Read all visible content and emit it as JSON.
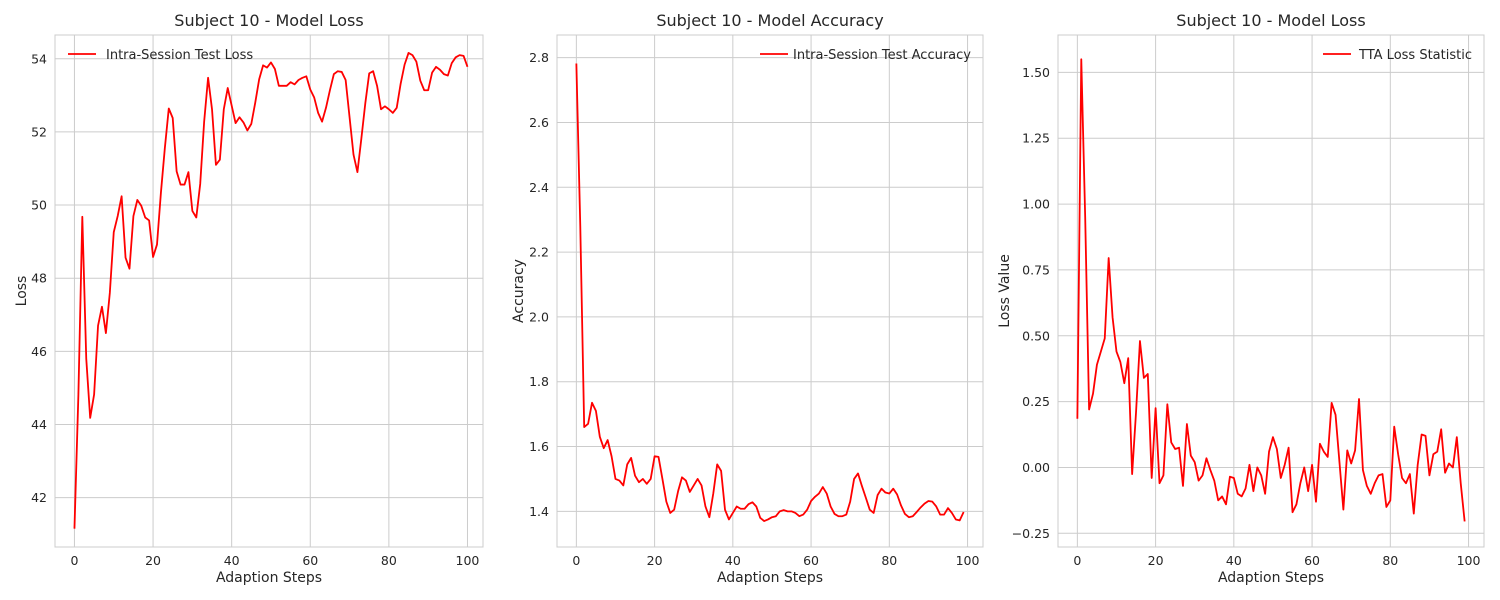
{
  "colors": {
    "line": "#ff0000",
    "grid": "#cccccc",
    "frame": "#cccccc",
    "background": "#ffffff",
    "text": "#262626"
  },
  "chart_data": [
    {
      "type": "line",
      "title": "Subject 10 - Model Loss",
      "xlabel": "Adaption Steps",
      "ylabel": "Loss",
      "xlim": [
        -4.95,
        103.95
      ],
      "ylim": [
        40.65,
        54.65
      ],
      "xticks": [
        0,
        20,
        40,
        60,
        80,
        100
      ],
      "xtick_labels": [
        "0",
        "20",
        "40",
        "60",
        "80",
        "100"
      ],
      "yticks": [
        42,
        44,
        46,
        48,
        50,
        52,
        54
      ],
      "ytick_labels": [
        "42",
        "44",
        "46",
        "48",
        "50",
        "52",
        "54"
      ],
      "grid": true,
      "legend_position": "upper left",
      "series": [
        {
          "name": "Intra-Session Test Loss",
          "color": "#ff0000",
          "values": [
            41.15,
            44.8,
            49.68,
            45.8,
            44.18,
            44.82,
            46.7,
            47.22,
            46.5,
            47.6,
            49.26,
            49.7,
            50.24,
            48.56,
            48.26,
            49.7,
            50.14,
            49.98,
            49.66,
            49.58,
            48.58,
            48.92,
            50.34,
            51.56,
            52.64,
            52.38,
            50.92,
            50.56,
            50.56,
            50.9,
            49.84,
            49.66,
            50.58,
            52.28,
            53.48,
            52.62,
            51.1,
            51.24,
            52.62,
            53.2,
            52.72,
            52.24,
            52.4,
            52.26,
            52.04,
            52.22,
            52.8,
            53.44,
            53.82,
            53.76,
            53.9,
            53.72,
            53.26,
            53.26,
            53.26,
            53.36,
            53.3,
            53.42,
            53.48,
            53.52,
            53.16,
            52.94,
            52.52,
            52.28,
            52.66,
            53.14,
            53.58,
            53.66,
            53.64,
            53.42,
            52.4,
            51.38,
            50.9,
            51.82,
            52.78,
            53.6,
            53.66,
            53.26,
            52.62,
            52.7,
            52.62,
            52.52,
            52.66,
            53.32,
            53.84,
            54.16,
            54.1,
            53.92,
            53.4,
            53.14,
            53.14,
            53.62,
            53.78,
            53.7,
            53.58,
            53.54,
            53.88,
            54.04,
            54.1,
            54.08,
            53.78
          ]
        }
      ]
    },
    {
      "type": "line",
      "title": "Subject 10 - Model Accuracy",
      "xlabel": "Adaption Steps",
      "ylabel": "Accuracy",
      "xlim": [
        -4.95,
        103.95
      ],
      "ylim": [
        1.29,
        2.87
      ],
      "xticks": [
        0,
        20,
        40,
        60,
        80,
        100
      ],
      "xtick_labels": [
        "0",
        "20",
        "40",
        "60",
        "80",
        "100"
      ],
      "yticks": [
        1.4,
        1.6,
        1.8,
        2.0,
        2.2,
        2.4,
        2.6,
        2.8
      ],
      "ytick_labels": [
        "1.4",
        "1.6",
        "1.8",
        "2.0",
        "2.2",
        "2.4",
        "2.6",
        "2.8"
      ],
      "grid": true,
      "legend_position": "upper right",
      "series": [
        {
          "name": "Intra-Session Test Accuracy",
          "color": "#ff0000",
          "values": [
            2.782,
            2.28,
            1.66,
            1.67,
            1.735,
            1.71,
            1.63,
            1.595,
            1.62,
            1.57,
            1.5,
            1.495,
            1.48,
            1.545,
            1.565,
            1.51,
            1.49,
            1.5,
            1.485,
            1.5,
            1.57,
            1.568,
            1.5,
            1.43,
            1.395,
            1.405,
            1.462,
            1.505,
            1.495,
            1.46,
            1.48,
            1.5,
            1.48,
            1.415,
            1.382,
            1.455,
            1.545,
            1.525,
            1.405,
            1.375,
            1.395,
            1.415,
            1.408,
            1.408,
            1.422,
            1.428,
            1.415,
            1.38,
            1.37,
            1.375,
            1.382,
            1.385,
            1.4,
            1.404,
            1.4,
            1.4,
            1.395,
            1.385,
            1.39,
            1.405,
            1.432,
            1.445,
            1.455,
            1.475,
            1.455,
            1.415,
            1.392,
            1.385,
            1.385,
            1.39,
            1.43,
            1.5,
            1.517,
            1.478,
            1.442,
            1.405,
            1.395,
            1.45,
            1.47,
            1.458,
            1.455,
            1.47,
            1.452,
            1.418,
            1.392,
            1.382,
            1.385,
            1.398,
            1.412,
            1.424,
            1.432,
            1.43,
            1.415,
            1.39,
            1.39,
            1.41,
            1.395,
            1.375,
            1.372,
            1.398
          ]
        }
      ]
    },
    {
      "type": "line",
      "title": "Subject 10 - Model Loss",
      "xlabel": "Adaption Steps",
      "ylabel": "Loss Value",
      "xlim": [
        -4.95,
        103.95
      ],
      "ylim": [
        -0.302,
        1.642
      ],
      "xticks": [
        0,
        20,
        40,
        60,
        80,
        100
      ],
      "xtick_labels": [
        "0",
        "20",
        "40",
        "60",
        "80",
        "100"
      ],
      "yticks": [
        -0.25,
        0.0,
        0.25,
        0.5,
        0.75,
        1.0,
        1.25,
        1.5
      ],
      "ytick_labels": [
        "−0.25",
        "0.00",
        "0.25",
        "0.50",
        "0.75",
        "1.00",
        "1.25",
        "1.50"
      ],
      "grid": true,
      "legend_position": "upper right",
      "series": [
        {
          "name": "TTA Loss Statistic",
          "color": "#ff0000",
          "values": [
            0.185,
            1.55,
            0.95,
            0.22,
            0.28,
            0.39,
            0.44,
            0.49,
            0.795,
            0.57,
            0.44,
            0.4,
            0.32,
            0.415,
            -0.025,
            0.21,
            0.48,
            0.34,
            0.355,
            -0.04,
            0.225,
            -0.06,
            -0.03,
            0.24,
            0.095,
            0.07,
            0.075,
            -0.07,
            0.165,
            0.045,
            0.02,
            -0.05,
            -0.03,
            0.035,
            -0.01,
            -0.05,
            -0.125,
            -0.11,
            -0.14,
            -0.035,
            -0.04,
            -0.1,
            -0.11,
            -0.08,
            0.01,
            -0.09,
            0.0,
            -0.03,
            -0.1,
            0.06,
            0.115,
            0.07,
            -0.04,
            0.01,
            0.075,
            -0.17,
            -0.14,
            -0.06,
            0.0,
            -0.09,
            0.01,
            -0.13,
            0.09,
            0.06,
            0.04,
            0.245,
            0.2,
            0.02,
            -0.16,
            0.065,
            0.015,
            0.065,
            0.26,
            -0.01,
            -0.07,
            -0.1,
            -0.06,
            -0.03,
            -0.025,
            -0.15,
            -0.125,
            0.155,
            0.05,
            -0.04,
            -0.06,
            -0.025,
            -0.175,
            0.01,
            0.125,
            0.12,
            -0.03,
            0.05,
            0.06,
            0.145,
            -0.02,
            0.015,
            0.0,
            0.115,
            -0.06,
            -0.205
          ]
        }
      ]
    }
  ]
}
